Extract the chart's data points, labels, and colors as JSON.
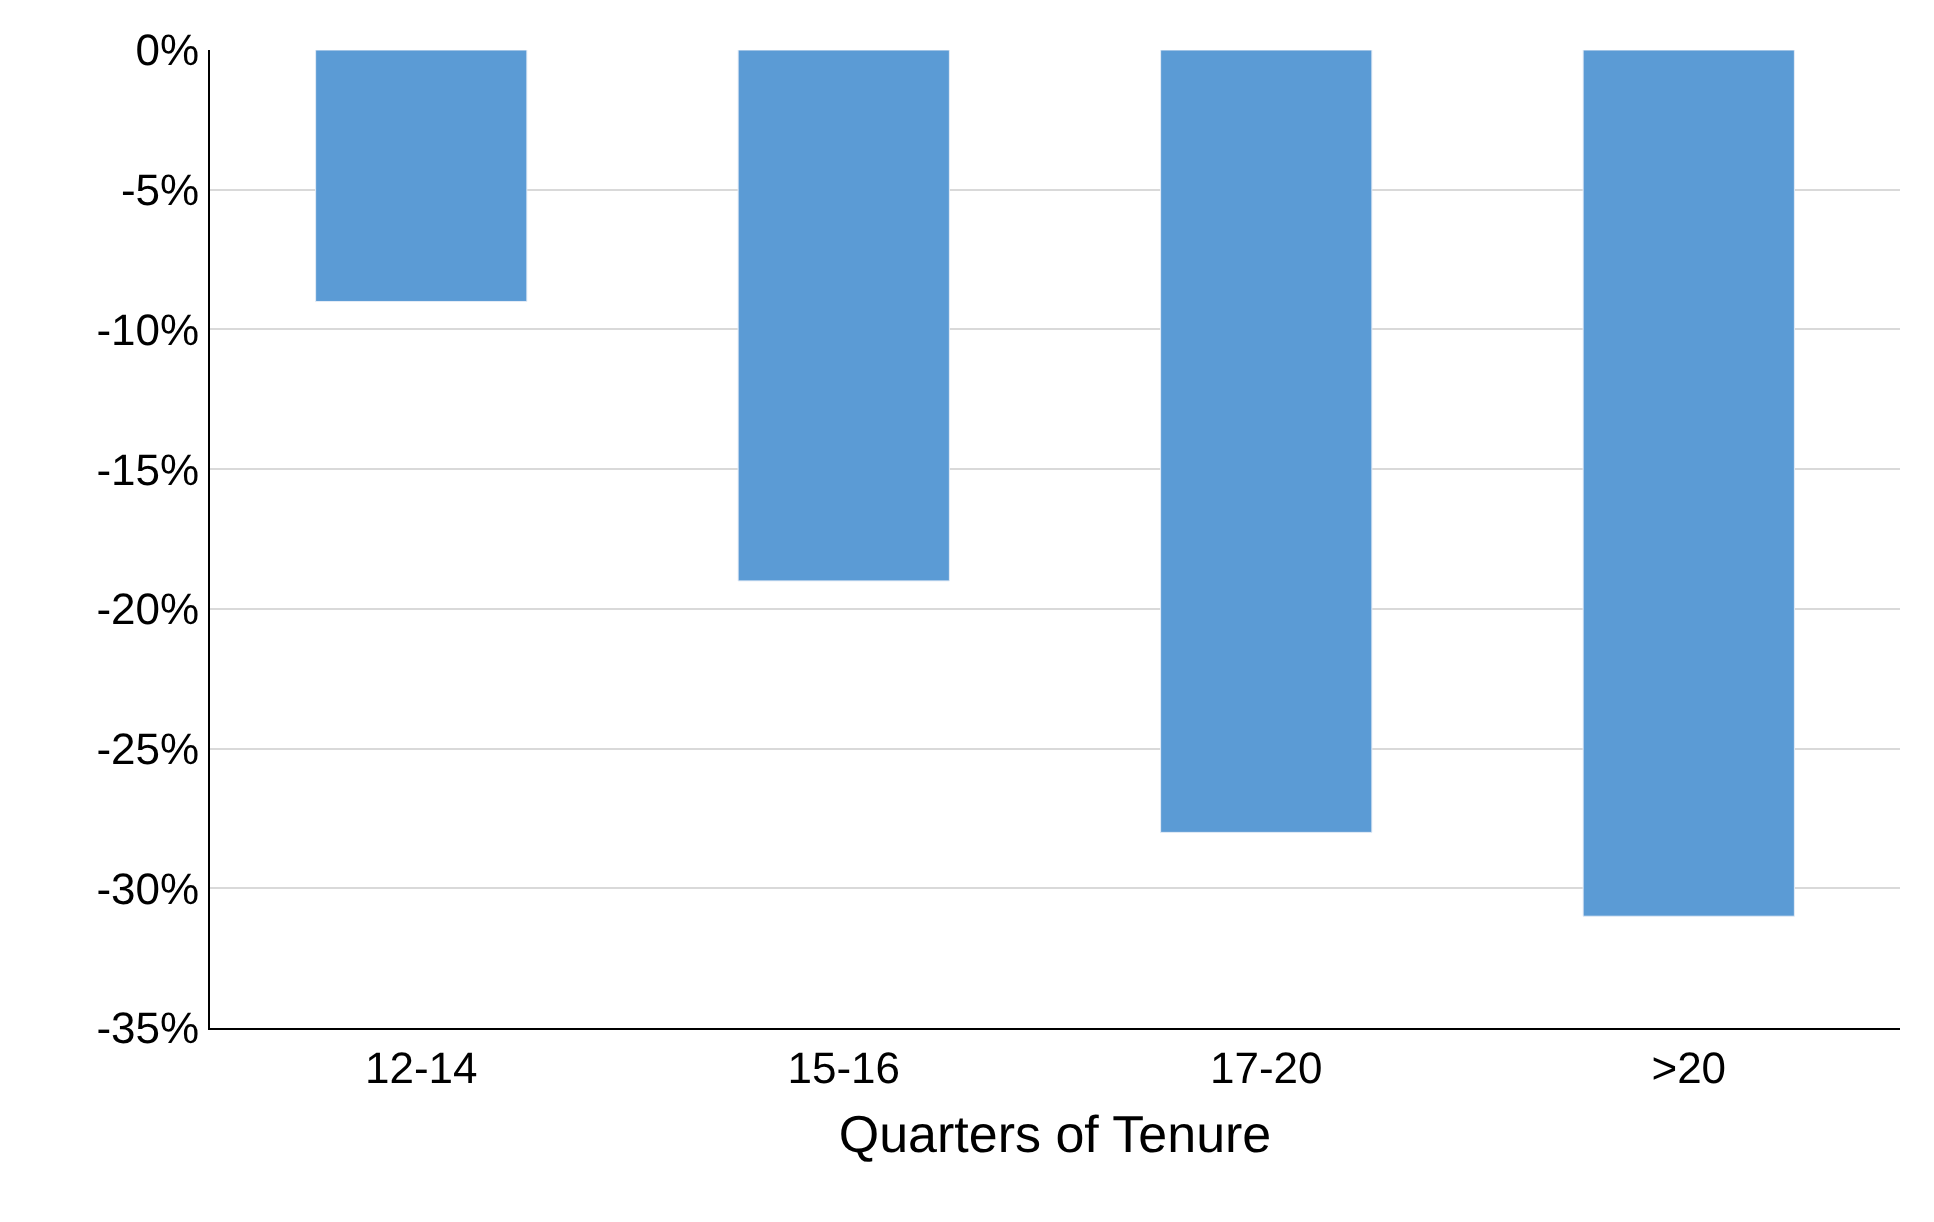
{
  "chart_data": {
    "type": "bar",
    "xlabel": "Quarters of Tenure",
    "categories": [
      "12-14",
      "15-16",
      "17-20",
      ">20"
    ],
    "series": [
      {
        "color": "#5b9bd5",
        "values": [
          -9,
          -19,
          -28,
          -31
        ]
      }
    ],
    "ylim": [
      -35,
      0
    ],
    "yticks": [
      {
        "value": 0,
        "label": "0%"
      },
      {
        "value": -5,
        "label": "-5%"
      },
      {
        "value": -10,
        "label": "-10%"
      },
      {
        "value": -15,
        "label": "-15%"
      },
      {
        "value": -20,
        "label": "-20%"
      },
      {
        "value": -25,
        "label": "-25%"
      },
      {
        "value": -30,
        "label": "-30%"
      },
      {
        "value": -35,
        "label": "-35%"
      }
    ],
    "grid": "y",
    "legend": false
  }
}
